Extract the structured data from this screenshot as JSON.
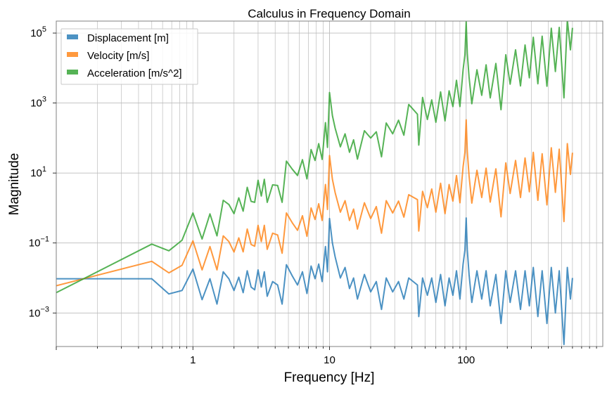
{
  "chart_data": {
    "type": "line",
    "title": "Calculus in Frequency Domain",
    "xlabel": "Frequency [Hz]",
    "ylabel": "Magnitude",
    "xscale": "log",
    "yscale": "log",
    "xlim": [
      0.1,
      1000
    ],
    "ylim": [
      0.00011,
      220000
    ],
    "grid": true,
    "legend_placement": "top-left",
    "xticks": [
      {
        "value": 1,
        "label": "1"
      },
      {
        "value": 10,
        "label": "10"
      },
      {
        "value": 100,
        "label": "100"
      }
    ],
    "yticks": [
      {
        "value": 100000,
        "base": "10",
        "exp": "5"
      },
      {
        "value": 1000,
        "base": "10",
        "exp": "3"
      },
      {
        "value": 10,
        "base": "10",
        "exp": "1"
      },
      {
        "value": 0.1,
        "base": "10",
        "exp": "−1"
      },
      {
        "value": 0.001,
        "base": "10",
        "exp": "−3"
      }
    ],
    "x": [
      0.1,
      0.5,
      0.667,
      0.833,
      1.0,
      1.167,
      1.333,
      1.5,
      1.667,
      1.833,
      2.0,
      2.167,
      2.333,
      2.5,
      2.667,
      2.833,
      3.0,
      3.167,
      3.333,
      3.5,
      3.833,
      4.167,
      4.5,
      4.833,
      5.333,
      5.833,
      6.333,
      6.833,
      7.333,
      7.833,
      8.333,
      8.833,
      9.333,
      9.667,
      10,
      10.5,
      11,
      12,
      13,
      14,
      15,
      16,
      18,
      20,
      22,
      24,
      26,
      29,
      32,
      35,
      38,
      44,
      45,
      48,
      52,
      56,
      60,
      65,
      70,
      75,
      80,
      85,
      90,
      95,
      98,
      100,
      102,
      105,
      110,
      120,
      130,
      140,
      150,
      165,
      180,
      195,
      210,
      230,
      250,
      270,
      290,
      310,
      335,
      360,
      390,
      420,
      450,
      480,
      520,
      550,
      580,
      600
    ],
    "series": [
      {
        "name": "Displacement [m]",
        "color": "#1f77b4",
        "values": [
          0.0095,
          0.0095,
          0.0035,
          0.0044,
          0.018,
          0.0024,
          0.0095,
          0.0018,
          0.015,
          0.0095,
          0.0044,
          0.0105,
          0.0038,
          0.016,
          0.0055,
          0.0046,
          0.017,
          0.0055,
          0.015,
          0.003,
          0.0079,
          0.0063,
          0.0018,
          0.024,
          0.0115,
          0.0063,
          0.015,
          0.0036,
          0.022,
          0.0095,
          0.025,
          0.0079,
          0.079,
          0.015,
          0.5,
          0.1,
          0.04,
          0.01,
          0.02,
          0.005,
          0.01,
          0.0025,
          0.0126,
          0.004,
          0.0079,
          0.00126,
          0.01,
          0.004,
          0.0079,
          0.0025,
          0.01,
          0.0063,
          0.00079,
          0.01,
          0.0032,
          0.01,
          0.002,
          0.0126,
          0.0016,
          0.01,
          0.0032,
          0.016,
          0.0025,
          0.025,
          0.063,
          0.52,
          0.063,
          0.0126,
          0.002,
          0.016,
          0.0025,
          0.016,
          0.0016,
          0.0126,
          0.0005,
          0.016,
          0.002,
          0.016,
          0.00126,
          0.016,
          0.0016,
          0.02,
          0.00079,
          0.016,
          0.0005,
          0.02,
          0.001,
          0.016,
          0.000126,
          0.02,
          0.0025,
          0.01
        ]
      },
      {
        "name": "Velocity [m/s]",
        "color": "#ff7f0e",
        "values": [
          0.006,
          0.03,
          0.014,
          0.023,
          0.115,
          0.017,
          0.079,
          0.017,
          0.16,
          0.11,
          0.055,
          0.14,
          0.056,
          0.25,
          0.091,
          0.081,
          0.32,
          0.11,
          0.32,
          0.066,
          0.19,
          0.17,
          0.051,
          0.72,
          0.38,
          0.23,
          0.6,
          0.155,
          1.0,
          0.47,
          1.32,
          0.44,
          4.7,
          0.91,
          31.6,
          6.6,
          2.75,
          0.76,
          1.62,
          0.44,
          0.93,
          0.25,
          1.41,
          0.5,
          1.1,
          0.19,
          1.62,
          0.72,
          1.58,
          0.55,
          2.4,
          1.74,
          0.22,
          3.0,
          1.02,
          3.5,
          0.76,
          5.1,
          0.69,
          4.7,
          1.58,
          8.5,
          1.41,
          15.1,
          38.9,
          331,
          40.7,
          8.3,
          1.38,
          12,
          2.0,
          13.8,
          1.48,
          13.2,
          0.56,
          19.5,
          2.6,
          22.9,
          2.0,
          26.9,
          2.9,
          38.9,
          1.66,
          35.5,
          1.23,
          52.5,
          2.8,
          47.9,
          0.41,
          69,
          9.1,
          38
        ]
      },
      {
        "name": "Acceleration [m/s^2]",
        "color": "#2ca02c",
        "values": [
          0.0038,
          0.093,
          0.06,
          0.12,
          0.72,
          0.13,
          0.68,
          0.16,
          1.66,
          1.26,
          0.69,
          1.95,
          0.81,
          3.9,
          1.55,
          1.45,
          6.2,
          2.2,
          6.6,
          1.45,
          4.6,
          4.4,
          1.45,
          21.9,
          12.9,
          8.5,
          24,
          6.8,
          46.8,
          22.9,
          69,
          24.5,
          275,
          54,
          2000,
          437,
          191,
          56,
          132,
          39,
          89,
          25,
          162,
          100,
          151,
          29,
          269,
          132,
          324,
          120,
          912,
          479,
          63,
          1445,
          339,
          1230,
          282,
          2090,
          309,
          2240,
          794,
          4470,
          794,
          8910,
          24000,
          209000,
          25700,
          5500,
          955,
          8910,
          1660,
          12300,
          1410,
          13500,
          646,
          24000,
          3470,
          33100,
          3090,
          45700,
          5250,
          75900,
          3550,
          81300,
          3020,
          138000,
          7940,
          145000,
          1410,
          240000,
          33100,
          141000
        ]
      }
    ]
  }
}
